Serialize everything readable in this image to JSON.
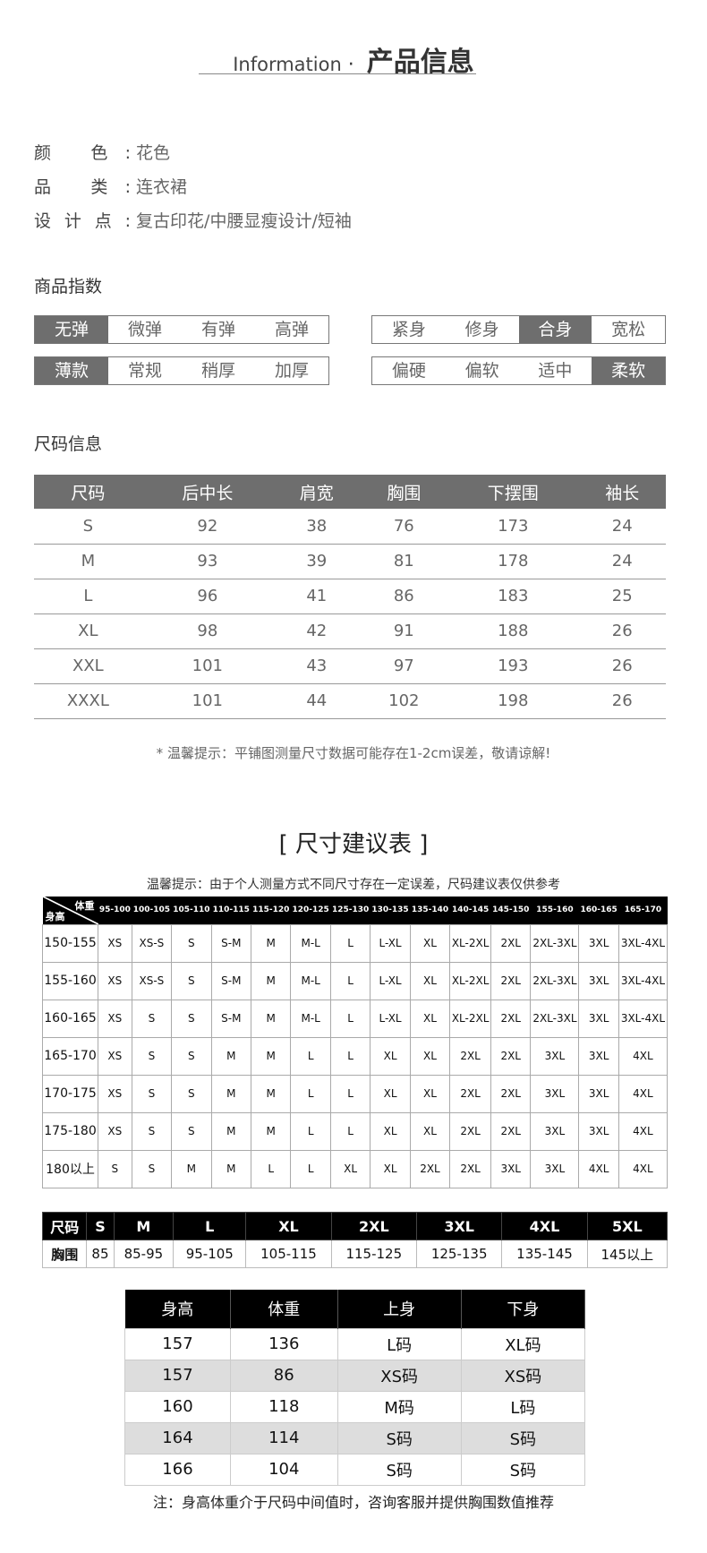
{
  "header": {
    "en": "Information",
    "dot": "·",
    "cn": "产品信息"
  },
  "attributes": [
    {
      "key": "颜 色:",
      "value": "花色"
    },
    {
      "key": "品 类:",
      "value": "连衣裙"
    },
    {
      "key": "设计点:",
      "value": "复古印花/中腰显瘦设计/短袖"
    }
  ],
  "index_title": "商品指数",
  "index_groups": [
    {
      "options": [
        "无弹",
        "微弹",
        "有弹",
        "高弹"
      ],
      "selected": 0
    },
    {
      "options": [
        "紧身",
        "修身",
        "合身",
        "宽松"
      ],
      "selected": 2
    },
    {
      "options": [
        "薄款",
        "常规",
        "稍厚",
        "加厚"
      ],
      "selected": 0
    },
    {
      "options": [
        "偏硬",
        "偏软",
        "适中",
        "柔软"
      ],
      "selected": 3
    }
  ],
  "index_active_color": "#6e6e6e",
  "size_title": "尺码信息",
  "size_table": {
    "headers": [
      "尺码",
      "后中长",
      "肩宽",
      "胸围",
      "下摆围",
      "袖长"
    ],
    "rows": [
      [
        "S",
        "92",
        "38",
        "76",
        "173",
        "24"
      ],
      [
        "M",
        "93",
        "39",
        "81",
        "178",
        "24"
      ],
      [
        "L",
        "96",
        "41",
        "86",
        "183",
        "25"
      ],
      [
        "XL",
        "98",
        "42",
        "91",
        "188",
        "26"
      ],
      [
        "XXL",
        "101",
        "43",
        "97",
        "193",
        "26"
      ],
      [
        "XXXL",
        "101",
        "44",
        "102",
        "198",
        "26"
      ]
    ]
  },
  "size_note": "* 温馨提示：平铺图测量尺寸数据可能存在1-2cm误差，敬请谅解!",
  "rec_title": "[ 尺寸建议表 ]",
  "rec_tip": "温馨提示：由于个人测量方式不同尺寸存在一定误差，尺码建议表仅供参考",
  "rec_table": {
    "corner_weight": "体重",
    "corner_height": "身高",
    "weights": [
      "95-100",
      "100-105",
      "105-110",
      "110-115",
      "115-120",
      "120-125",
      "125-130",
      "130-135",
      "135-140",
      "140-145",
      "145-150",
      "155-160",
      "160-165",
      "165-170"
    ],
    "rows": [
      [
        "150-155",
        "XS",
        "XS-S",
        "S",
        "S-M",
        "M",
        "M-L",
        "L",
        "L-XL",
        "XL",
        "XL-2XL",
        "2XL",
        "2XL-3XL",
        "3XL",
        "3XL-4XL"
      ],
      [
        "155-160",
        "XS",
        "XS-S",
        "S",
        "S-M",
        "M",
        "M-L",
        "L",
        "L-XL",
        "XL",
        "XL-2XL",
        "2XL",
        "2XL-3XL",
        "3XL",
        "3XL-4XL"
      ],
      [
        "160-165",
        "XS",
        "S",
        "S",
        "S-M",
        "M",
        "M-L",
        "L",
        "L-XL",
        "XL",
        "XL-2XL",
        "2XL",
        "2XL-3XL",
        "3XL",
        "3XL-4XL"
      ],
      [
        "165-170",
        "XS",
        "S",
        "S",
        "M",
        "M",
        "L",
        "L",
        "XL",
        "XL",
        "2XL",
        "2XL",
        "3XL",
        "3XL",
        "4XL"
      ],
      [
        "170-175",
        "XS",
        "S",
        "S",
        "M",
        "M",
        "L",
        "L",
        "XL",
        "XL",
        "2XL",
        "2XL",
        "3XL",
        "3XL",
        "4XL"
      ],
      [
        "175-180",
        "XS",
        "S",
        "S",
        "M",
        "M",
        "L",
        "L",
        "XL",
        "XL",
        "2XL",
        "2XL",
        "3XL",
        "3XL",
        "4XL"
      ],
      [
        "180以上",
        "S",
        "S",
        "M",
        "M",
        "L",
        "L",
        "XL",
        "XL",
        "2XL",
        "2XL",
        "3XL",
        "3XL",
        "4XL",
        "4XL"
      ]
    ]
  },
  "chest_table": {
    "header": [
      "尺码",
      "S",
      "M",
      "L",
      "XL",
      "2XL",
      "3XL",
      "4XL",
      "5XL"
    ],
    "row": [
      "胸围",
      "85",
      "85-95",
      "95-105",
      "105-115",
      "115-125",
      "125-135",
      "135-145",
      "145以上"
    ]
  },
  "person_table": {
    "headers": [
      "身高",
      "体重",
      "上身",
      "下身"
    ],
    "rows": [
      [
        "157",
        "136",
        "L码",
        "XL码"
      ],
      [
        "157",
        "86",
        "XS码",
        "XS码"
      ],
      [
        "160",
        "118",
        "M码",
        "L码"
      ],
      [
        "164",
        "114",
        "S码",
        "S码"
      ],
      [
        "166",
        "104",
        "S码",
        "S码"
      ]
    ]
  },
  "bottom_note": "注：身高体重介于尺码中间值时，咨询客服并提供胸围数值推荐"
}
